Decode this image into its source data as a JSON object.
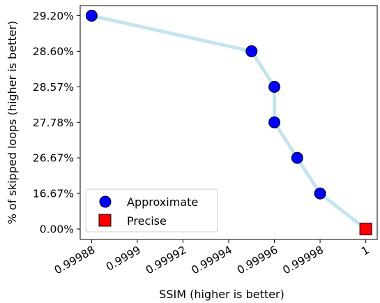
{
  "chart_data": {
    "type": "scatter",
    "xlabel": "SSIM (higher is better)",
    "ylabel": "% of skipped loops (higher is better)",
    "x_ticks": [
      "0.99988",
      "0.9999",
      "0.99992",
      "0.99994",
      "0.99996",
      "0.99998",
      "1"
    ],
    "x_tick_values": [
      0.99988,
      0.9999,
      0.99992,
      0.99994,
      0.99996,
      0.99998,
      1.0
    ],
    "y_ticks": [
      "0.00%",
      "16.67%",
      "26.67%",
      "27.78%",
      "28.57%",
      "28.60%",
      "29.20%"
    ],
    "xlim": [
      0.999875,
      1.000005
    ],
    "grid": false,
    "legend_position": "lower-left",
    "line_color": "#add8e6",
    "series": [
      {
        "name": "Approximate",
        "marker": "circle",
        "color": "#0000ff",
        "points": [
          {
            "x": 0.99988,
            "y": "29.20%"
          },
          {
            "x": 0.99995,
            "y": "28.60%"
          },
          {
            "x": 0.99996,
            "y": "28.57%"
          },
          {
            "x": 0.99996,
            "y": "27.78%"
          },
          {
            "x": 0.99997,
            "y": "26.67%"
          },
          {
            "x": 0.99998,
            "y": "16.67%"
          }
        ]
      },
      {
        "name": "Precise",
        "marker": "square",
        "color": "#ff0000",
        "points": [
          {
            "x": 1.0,
            "y": "0.00%"
          }
        ]
      }
    ]
  }
}
